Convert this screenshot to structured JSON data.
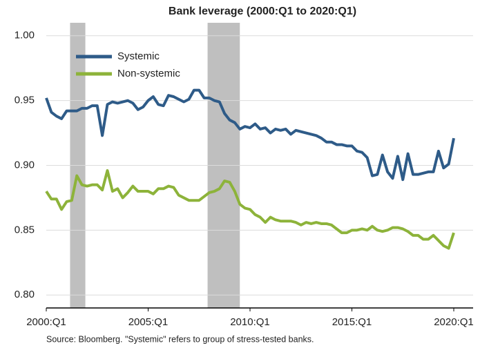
{
  "chart_data": {
    "type": "line",
    "title": "Bank leverage (2000:Q1 to 2020:Q1)",
    "note": "Source: Bloomberg. \"Systemic\" refers to group of stress-tested banks.",
    "categories": [
      "2000:Q1",
      null,
      null,
      null,
      null,
      null,
      null,
      null,
      null,
      null,
      null,
      null,
      null,
      null,
      null,
      null,
      null,
      null,
      null,
      null,
      "2005:Q1",
      null,
      null,
      null,
      null,
      null,
      null,
      null,
      null,
      null,
      null,
      null,
      null,
      null,
      null,
      null,
      null,
      null,
      null,
      null,
      "2010:Q1",
      null,
      null,
      null,
      null,
      null,
      null,
      null,
      null,
      null,
      null,
      null,
      null,
      null,
      null,
      null,
      null,
      null,
      null,
      null,
      "2015:Q1",
      null,
      null,
      null,
      null,
      null,
      null,
      null,
      null,
      null,
      null,
      null,
      null,
      null,
      null,
      null,
      null,
      null,
      null,
      null,
      "2020:Q1"
    ],
    "series": [
      {
        "name": "Systemic",
        "color": "#2e5b88",
        "values": [
          0.952,
          0.941,
          0.938,
          0.936,
          0.942,
          0.942,
          0.942,
          0.944,
          0.944,
          0.946,
          0.946,
          0.923,
          0.947,
          0.949,
          0.948,
          0.949,
          0.95,
          0.948,
          0.943,
          0.945,
          0.95,
          0.953,
          0.947,
          0.946,
          0.954,
          0.953,
          0.951,
          0.949,
          0.951,
          0.958,
          0.958,
          0.952,
          0.952,
          0.95,
          0.949,
          0.94,
          0.935,
          0.933,
          0.928,
          0.93,
          0.929,
          0.932,
          0.928,
          0.929,
          0.925,
          0.928,
          0.927,
          0.928,
          0.924,
          0.927,
          0.926,
          0.925,
          0.924,
          0.923,
          0.921,
          0.918,
          0.918,
          0.916,
          0.916,
          0.915,
          0.915,
          0.911,
          0.91,
          0.906,
          0.892,
          0.893,
          0.908,
          0.895,
          0.89,
          0.907,
          0.889,
          0.909,
          0.893,
          0.893,
          0.894,
          0.895,
          0.895,
          0.911,
          0.898,
          0.901,
          0.921
        ]
      },
      {
        "name": "Non-systemic",
        "color": "#8db33a",
        "values": [
          0.88,
          0.874,
          0.874,
          0.866,
          0.872,
          0.873,
          0.892,
          0.885,
          0.884,
          0.885,
          0.885,
          0.881,
          0.896,
          0.88,
          0.882,
          0.875,
          0.879,
          0.884,
          0.88,
          0.88,
          0.88,
          0.878,
          0.882,
          0.882,
          0.884,
          0.883,
          0.877,
          0.875,
          0.873,
          0.873,
          0.873,
          0.876,
          0.879,
          0.88,
          0.882,
          0.888,
          0.887,
          0.88,
          0.87,
          0.867,
          0.866,
          0.862,
          0.86,
          0.856,
          0.86,
          0.858,
          0.857,
          0.857,
          0.857,
          0.856,
          0.854,
          0.856,
          0.855,
          0.856,
          0.855,
          0.855,
          0.854,
          0.851,
          0.848,
          0.848,
          0.85,
          0.85,
          0.851,
          0.85,
          0.853,
          0.85,
          0.849,
          0.85,
          0.852,
          0.852,
          0.851,
          0.849,
          0.846,
          0.846,
          0.843,
          0.843,
          0.846,
          0.842,
          0.838,
          0.836,
          0.848
        ]
      }
    ],
    "shaded_periods": [
      [
        4.67,
        7.67
      ],
      [
        31.67,
        38
      ]
    ],
    "shade_color": "#bfbfbf",
    "ylim": [
      0.79,
      1.01
    ],
    "yticks": [
      {
        "value": 0.8,
        "label": "0.80"
      },
      0.85,
      {
        "value": 0.9,
        "label": "0.90"
      },
      0.95,
      {
        "value": 1.0,
        "label": "1.00"
      }
    ],
    "grid": true,
    "legend": "upper left"
  }
}
